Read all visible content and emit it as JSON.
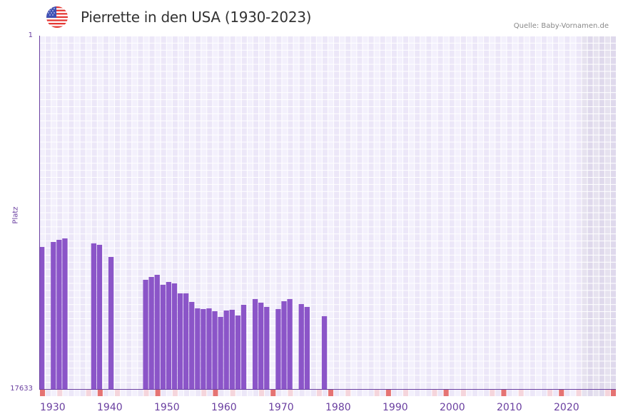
{
  "header": {
    "title": "Pierrette in den USA (1930-2023)",
    "source": "Quelle: Baby-Vornamen.de",
    "flag_icon": "us-flag-icon"
  },
  "axis": {
    "y_label": "Platz",
    "y_top": "1",
    "y_bottom": "17633",
    "x_ticks": [
      "1930",
      "1940",
      "1950",
      "1960",
      "1970",
      "1980",
      "1990",
      "2000",
      "2010",
      "2020"
    ]
  },
  "colors": {
    "bar": "#8b55c8",
    "axis": "#6a3fa0",
    "decade_marker": "#e57373",
    "mid_marker": "#f5d5dc",
    "grid_a": "#f3f0fc",
    "grid_b": "#ece7f8",
    "future_a": "#e6e2ef",
    "future_b": "#dfd9ec"
  },
  "chart_data": {
    "type": "bar",
    "title": "Pierrette in den USA (1930-2023)",
    "xlabel": "",
    "ylabel": "Platz",
    "ylim": [
      17633,
      1
    ],
    "y_inverted": true,
    "x_range": [
      1930,
      2029
    ],
    "shaded_future_from": 2024,
    "grid": true,
    "legend": null,
    "x_tick_labels": [
      "1930",
      "1940",
      "1950",
      "1960",
      "1970",
      "1980",
      "1990",
      "2000",
      "2010",
      "2020"
    ],
    "points": [
      {
        "year": 1930,
        "rank": 10544
      },
      {
        "year": 1932,
        "rank": 10295
      },
      {
        "year": 1933,
        "rank": 10188
      },
      {
        "year": 1934,
        "rank": 10117
      },
      {
        "year": 1939,
        "rank": 10366
      },
      {
        "year": 1940,
        "rank": 10437
      },
      {
        "year": 1942,
        "rank": 11043
      },
      {
        "year": 1948,
        "rank": 12183
      },
      {
        "year": 1949,
        "rank": 12040
      },
      {
        "year": 1950,
        "rank": 11934
      },
      {
        "year": 1951,
        "rank": 12432
      },
      {
        "year": 1952,
        "rank": 12290
      },
      {
        "year": 1953,
        "rank": 12361
      },
      {
        "year": 1954,
        "rank": 12860
      },
      {
        "year": 1955,
        "rank": 12860
      },
      {
        "year": 1956,
        "rank": 13287
      },
      {
        "year": 1957,
        "rank": 13608
      },
      {
        "year": 1958,
        "rank": 13643
      },
      {
        "year": 1959,
        "rank": 13608
      },
      {
        "year": 1960,
        "rank": 13750
      },
      {
        "year": 1961,
        "rank": 14035
      },
      {
        "year": 1962,
        "rank": 13715
      },
      {
        "year": 1963,
        "rank": 13679
      },
      {
        "year": 1964,
        "rank": 13964
      },
      {
        "year": 1965,
        "rank": 13430
      },
      {
        "year": 1967,
        "rank": 13145
      },
      {
        "year": 1968,
        "rank": 13323
      },
      {
        "year": 1969,
        "rank": 13537
      },
      {
        "year": 1971,
        "rank": 13643
      },
      {
        "year": 1972,
        "rank": 13252
      },
      {
        "year": 1973,
        "rank": 13145
      },
      {
        "year": 1975,
        "rank": 13394
      },
      {
        "year": 1976,
        "rank": 13537
      },
      {
        "year": 1979,
        "rank": 13999
      }
    ]
  }
}
